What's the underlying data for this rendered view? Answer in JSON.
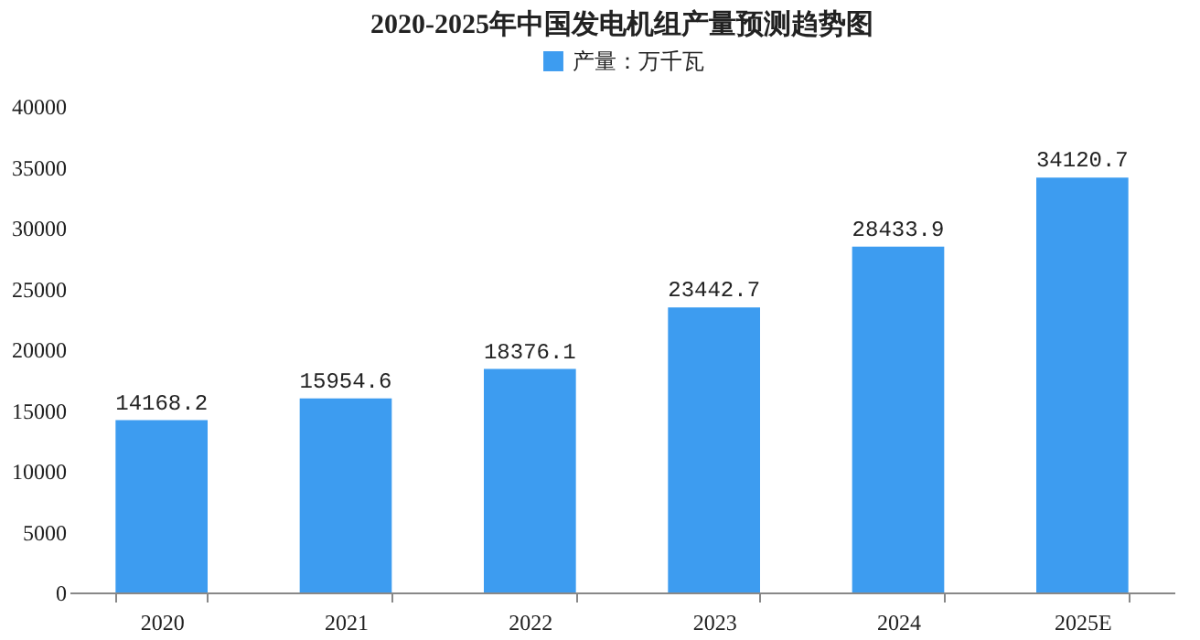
{
  "chart_data": {
    "type": "bar",
    "title": "2020-2025年中国发电机组产量预测趋势图",
    "categories": [
      "2020",
      "2021",
      "2022",
      "2023",
      "2024",
      "2025E"
    ],
    "series": [
      {
        "name": "产量：万千瓦",
        "color": "#3d9cf0",
        "values": [
          14168.2,
          15954.6,
          18376.1,
          23442.7,
          28433.9,
          34120.7
        ]
      }
    ],
    "ylim": [
      0,
      40000
    ],
    "yticks": [
      0,
      5000,
      10000,
      15000,
      20000,
      25000,
      30000,
      35000,
      40000
    ],
    "grid": false,
    "legend": "top",
    "data_labels": true
  }
}
